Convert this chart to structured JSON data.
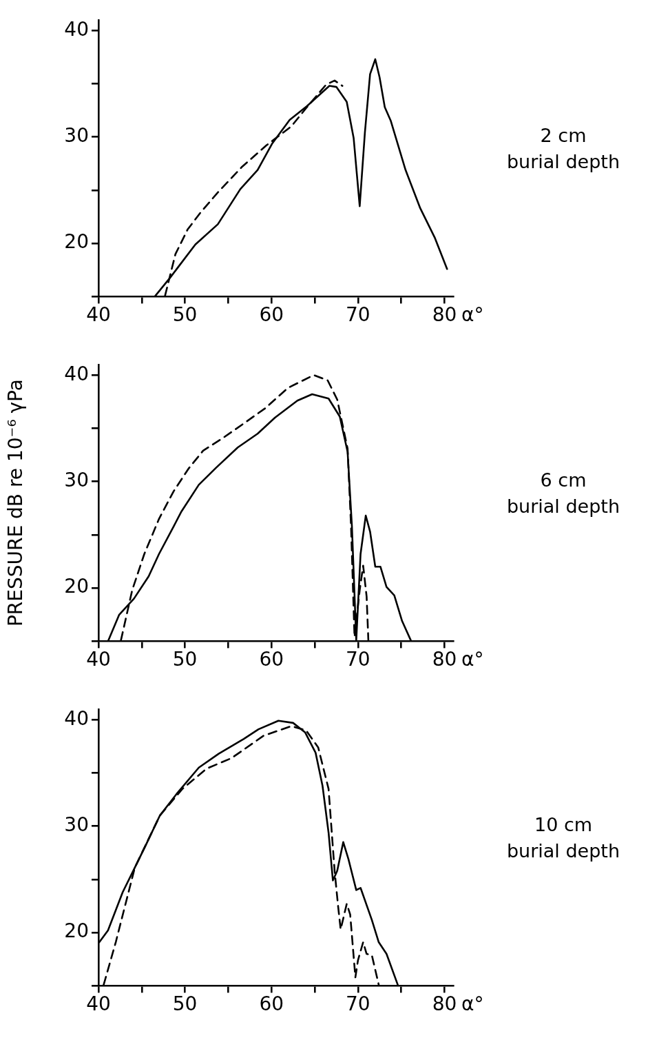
{
  "chart_data": [
    {
      "type": "line",
      "xlabel": "α°",
      "xlim": [
        40,
        81
      ],
      "xticks": [
        40,
        {
          "value": 45,
          "label": null
        },
        50,
        {
          "value": 55,
          "label": null
        },
        60,
        {
          "value": 65,
          "label": null
        },
        70,
        {
          "value": 75,
          "label": null
        },
        80
      ],
      "ylim": [
        15,
        41
      ],
      "yticks": [
        {
          "value": 15,
          "label": null
        },
        20,
        {
          "value": 25,
          "label": null
        },
        30,
        {
          "value": 35,
          "label": null
        },
        40
      ],
      "marker": "none",
      "annotations": [
        "2 cm\nburial depth"
      ],
      "series": [
        {
          "color": "#000000",
          "line_style": "solid",
          "x": [
            40,
            46.5,
            48.3,
            51.2,
            53.8,
            56.4,
            58.4,
            60.1,
            62.1,
            64.1,
            66.7,
            67.5,
            68.7,
            69.5,
            70.2,
            70.8,
            71.4,
            72.0,
            72.5,
            73.1,
            73.8,
            75.5,
            77.2,
            78.9,
            80.3
          ],
          "values": [
            15,
            15,
            16.8,
            19.9,
            21.8,
            25.1,
            26.9,
            29.4,
            31.6,
            32.9,
            34.8,
            34.7,
            33.3,
            29.9,
            23.5,
            30.4,
            35.9,
            37.3,
            35.6,
            32.8,
            31.5,
            26.9,
            23.3,
            20.5,
            17.6
          ]
        },
        {
          "color": "#000000",
          "line_style": "dashed",
          "x": [
            47.7,
            48.9,
            50.3,
            51.7,
            53.7,
            56.6,
            59.4,
            62.3,
            64.0,
            66.3,
            67.3,
            68.2
          ],
          "values": [
            15.1,
            19.0,
            21.3,
            22.8,
            24.7,
            27.2,
            29.2,
            31.0,
            32.7,
            34.9,
            35.3,
            34.8
          ]
        }
      ]
    },
    {
      "type": "line",
      "xlabel": "α°",
      "ylabel": "PRESSURE dB re 10⁻⁶ γPa",
      "xlim": [
        40,
        81
      ],
      "xticks": [
        40,
        {
          "value": 45,
          "label": null
        },
        50,
        {
          "value": 55,
          "label": null
        },
        60,
        {
          "value": 65,
          "label": null
        },
        70,
        {
          "value": 75,
          "label": null
        },
        80
      ],
      "ylim": [
        15,
        41
      ],
      "yticks": [
        {
          "value": 15,
          "label": null
        },
        20,
        {
          "value": 25,
          "label": null
        },
        30,
        {
          "value": 35,
          "label": null
        },
        40
      ],
      "marker": "none",
      "annotations": [
        "6 cm\nburial depth"
      ],
      "series": [
        {
          "color": "#000000",
          "line_style": "solid",
          "x": [
            40,
            41.1,
            42.4,
            44.1,
            45.8,
            47.0,
            48.7,
            49.6,
            51.6,
            53.6,
            56.1,
            58.4,
            60.4,
            63.0,
            64.7,
            66.6,
            67.9,
            68.8,
            69.3,
            69.8,
            70.3,
            70.9,
            71.4,
            72.0,
            72.6,
            73.3,
            74.2,
            75.1,
            76.1
          ],
          "values": [
            15,
            15,
            17.5,
            19.0,
            21.1,
            23.2,
            25.8,
            27.2,
            29.7,
            31.3,
            33.2,
            34.5,
            36.0,
            37.6,
            38.2,
            37.8,
            36.1,
            32.8,
            25.8,
            15.1,
            23.2,
            26.8,
            25.3,
            22.0,
            22.0,
            20.1,
            19.3,
            16.9,
            15.1
          ]
        },
        {
          "color": "#000000",
          "line_style": "dashed",
          "x": [
            42.6,
            43.9,
            45.3,
            47.0,
            48.7,
            50.4,
            52.1,
            54.4,
            56.7,
            59.3,
            61.9,
            64.9,
            66.5,
            67.6,
            68.8,
            69.2,
            69.6,
            70.2,
            70.6,
            71.0,
            71.2
          ],
          "values": [
            15.1,
            19.8,
            23.2,
            26.5,
            29.1,
            31.2,
            32.9,
            34.1,
            35.4,
            36.9,
            38.8,
            40.0,
            39.5,
            37.7,
            33.1,
            25.8,
            15.4,
            19.8,
            22.1,
            19.2,
            15.1
          ]
        }
      ]
    },
    {
      "type": "line",
      "xlabel": "α°",
      "xlim": [
        40,
        81
      ],
      "xticks": [
        40,
        {
          "value": 45,
          "label": null
        },
        50,
        {
          "value": 55,
          "label": null
        },
        60,
        {
          "value": 65,
          "label": null
        },
        70,
        {
          "value": 75,
          "label": null
        },
        80
      ],
      "ylim": [
        15,
        41
      ],
      "yticks": [
        {
          "value": 15,
          "label": null
        },
        20,
        {
          "value": 25,
          "label": null
        },
        30,
        {
          "value": 35,
          "label": null
        },
        40
      ],
      "marker": "none",
      "annotations": [
        "10 cm\nburial depth"
      ],
      "series": [
        {
          "color": "#000000",
          "line_style": "solid",
          "x": [
            40.1,
            41.1,
            42.8,
            44.2,
            45.4,
            47.1,
            49.1,
            51.6,
            53.9,
            56.8,
            58.5,
            60.8,
            62.5,
            63.9,
            65.1,
            65.9,
            66.6,
            67.1,
            67.6,
            68.3,
            68.9,
            69.8,
            70.3,
            71.6,
            72.4,
            73.3,
            74.6
          ],
          "values": [
            19.1,
            20.2,
            23.8,
            26.1,
            28.1,
            31.0,
            33.1,
            35.5,
            36.8,
            38.2,
            39.1,
            39.9,
            39.7,
            38.8,
            36.9,
            33.8,
            29.4,
            24.9,
            25.8,
            28.5,
            26.9,
            24.0,
            24.2,
            21.2,
            19.1,
            18.0,
            15.1
          ]
        },
        {
          "color": "#000000",
          "line_style": "dashed",
          "x": [
            40.6,
            42.0,
            44.2,
            47.1,
            49.7,
            52.5,
            55.4,
            59.1,
            62.3,
            64.0,
            65.4,
            66.6,
            67.3,
            67.7,
            68.0,
            68.7,
            69.1,
            69.7,
            70.0,
            70.6,
            71.0,
            71.6,
            72.4
          ],
          "values": [
            15.1,
            19.1,
            26.1,
            31.0,
            33.5,
            35.4,
            36.4,
            38.5,
            39.4,
            39.0,
            37.4,
            33.5,
            25.8,
            22.5,
            20.3,
            22.7,
            21.7,
            15.8,
            17.4,
            19.1,
            18.0,
            17.9,
            15.1
          ]
        }
      ]
    }
  ]
}
